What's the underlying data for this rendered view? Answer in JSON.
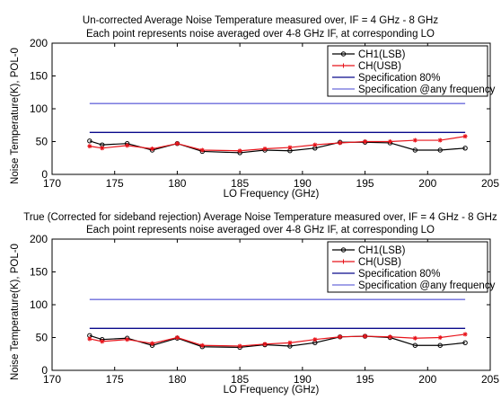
{
  "chart_data": [
    {
      "type": "line",
      "title": "Un-corrected Average Noise Temperature measured over,   IF = 4 GHz - 8 GHz",
      "subtitle": "Each point represents noise averaged over 4-8 GHz IF, at corresponding LO",
      "xlabel": "LO Frequency (GHz)",
      "ylabel": "Noise Temperature(K), POL-0",
      "xlim": [
        170,
        205
      ],
      "ylim": [
        0,
        200
      ],
      "xticks": [
        170,
        175,
        180,
        185,
        190,
        195,
        200,
        205
      ],
      "yticks": [
        0,
        50,
        100,
        150,
        200
      ],
      "grid": false,
      "legend_position": "top-right",
      "series": [
        {
          "name": "CH1(LSB)",
          "color": "#000000",
          "marker": "circle",
          "x": [
            173,
            174,
            176,
            178,
            180,
            182,
            185,
            187,
            189,
            191,
            193,
            195,
            197,
            199,
            201,
            203
          ],
          "y": [
            51,
            45,
            47,
            37,
            47,
            35,
            33,
            37,
            36,
            40,
            49,
            49,
            48,
            37,
            37,
            40
          ]
        },
        {
          "name": "CH(USB)",
          "color": "#e8141b",
          "marker": "star",
          "x": [
            173,
            174,
            176,
            178,
            180,
            182,
            185,
            187,
            189,
            191,
            193,
            195,
            197,
            199,
            201,
            203
          ],
          "y": [
            43,
            40,
            44,
            39,
            47,
            37,
            36,
            39,
            41,
            45,
            48,
            50,
            50,
            52,
            52,
            58
          ]
        },
        {
          "name": "Specification 80%",
          "color": "#0a0a8c",
          "marker": "none",
          "x": [
            173,
            203
          ],
          "y": [
            64,
            64
          ]
        },
        {
          "name": "Specification @any frequency",
          "color": "#6b6bdb",
          "marker": "none",
          "x": [
            173,
            203
          ],
          "y": [
            108,
            108
          ]
        }
      ]
    },
    {
      "type": "line",
      "title": "True (Corrected for sideband rejection) Average Noise Temperature measured over, IF = 4 GHz - 8 GHz",
      "subtitle": "Each point represents noise averaged over 4-8 GHz IF, at corresponding LO",
      "xlabel": "LO Frequency (GHz)",
      "ylabel": "Noise Temperature(K), POL-0",
      "xlim": [
        170,
        205
      ],
      "ylim": [
        0,
        200
      ],
      "xticks": [
        170,
        175,
        180,
        185,
        190,
        195,
        200,
        205
      ],
      "yticks": [
        0,
        50,
        100,
        150,
        200
      ],
      "grid": false,
      "legend_position": "top-right",
      "series": [
        {
          "name": "CH1(LSB)",
          "color": "#000000",
          "marker": "circle",
          "x": [
            173,
            174,
            176,
            178,
            180,
            182,
            185,
            187,
            189,
            191,
            193,
            195,
            197,
            199,
            201,
            203
          ],
          "y": [
            53,
            47,
            49,
            38,
            49,
            36,
            35,
            39,
            37,
            42,
            51,
            52,
            50,
            38,
            38,
            42
          ]
        },
        {
          "name": "CH(USB)",
          "color": "#e8141b",
          "marker": "star",
          "x": [
            173,
            174,
            176,
            178,
            180,
            182,
            185,
            187,
            189,
            191,
            193,
            195,
            197,
            199,
            201,
            203
          ],
          "y": [
            48,
            44,
            47,
            41,
            50,
            38,
            37,
            40,
            42,
            47,
            51,
            52,
            51,
            49,
            50,
            55
          ]
        },
        {
          "name": "Specification 80%",
          "color": "#0a0a8c",
          "marker": "none",
          "x": [
            173,
            203
          ],
          "y": [
            64,
            64
          ]
        },
        {
          "name": "Specification @any frequency",
          "color": "#6b6bdb",
          "marker": "none",
          "x": [
            173,
            203
          ],
          "y": [
            108,
            108
          ]
        }
      ]
    }
  ]
}
